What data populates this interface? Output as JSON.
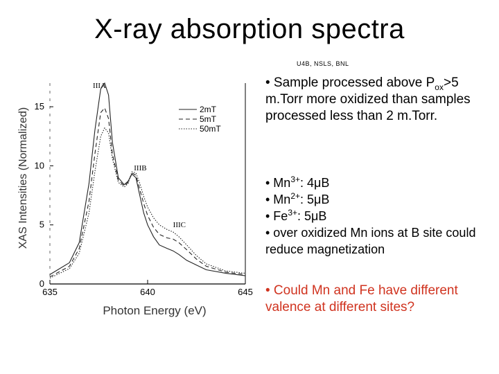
{
  "slide": {
    "title": "X-ray absorption spectra",
    "source": "U4B, NSLS, BNL"
  },
  "bullets": {
    "b1": {
      "lead": "• Sample processed above P",
      "sub": "ox",
      "tail": ">5 m.Torr more oxidized than samples processed less than 2 m.Torr."
    },
    "b2": [
      {
        "pre": "• Mn",
        "sup": "3+",
        "post": ": 4μB"
      },
      {
        "pre": "• Mn",
        "sup": "2+",
        "post": ": 5μB"
      },
      {
        "pre": "• Fe",
        "sup": "3+",
        "post": ": 5μB"
      },
      {
        "pre": "• over oxidized Mn ions at B site could reduce magnetization",
        "sup": "",
        "post": ""
      }
    ],
    "b3": "• Could Mn and Fe have different valence at different sites?",
    "b3_color": "#d0331f"
  },
  "chart_data": {
    "type": "line",
    "xlabel": "Photon Energy (eV)",
    "ylabel": "XAS Intensities (Normalized)",
    "xlim": [
      635,
      645
    ],
    "ylim": [
      0,
      17
    ],
    "xticks": [
      "635",
      "640",
      "645"
    ],
    "yticks": [
      "0",
      "5",
      "10",
      "15"
    ],
    "annotations": [
      {
        "text": "IIIA",
        "x": 637.2,
        "y": 16.6
      },
      {
        "text": "IIIB",
        "x": 639.3,
        "y": 9.6
      },
      {
        "text": "IIIC",
        "x": 641.3,
        "y": 4.8
      }
    ],
    "series": [
      {
        "name": "2mT",
        "style": "solid",
        "x": [
          635.0,
          636.0,
          636.5,
          637.0,
          637.3,
          637.6,
          637.8,
          638.0,
          638.2,
          638.5,
          638.8,
          639.0,
          639.2,
          639.4,
          639.6,
          639.8,
          640.0,
          640.3,
          640.6,
          641.0,
          641.3,
          641.6,
          642.0,
          642.5,
          643.0,
          644.0,
          645.0
        ],
        "y": [
          0.8,
          1.8,
          3.5,
          8.5,
          13.0,
          16.5,
          17.0,
          16.0,
          12.0,
          9.0,
          8.4,
          8.7,
          9.3,
          9.0,
          7.5,
          6.0,
          5.0,
          4.0,
          3.3,
          3.0,
          2.8,
          2.5,
          2.0,
          1.6,
          1.2,
          0.9,
          0.7
        ]
      },
      {
        "name": "5mT",
        "style": "dashed",
        "x": [
          635.0,
          636.0,
          636.5,
          637.0,
          637.3,
          637.6,
          637.8,
          638.0,
          638.2,
          638.5,
          638.8,
          639.0,
          639.2,
          639.4,
          639.6,
          639.8,
          640.0,
          640.3,
          640.6,
          641.0,
          641.3,
          641.6,
          642.0,
          642.5,
          643.0,
          644.0,
          645.0
        ],
        "y": [
          0.6,
          1.5,
          3.0,
          7.0,
          11.0,
          14.5,
          14.9,
          14.0,
          11.0,
          8.8,
          8.3,
          8.6,
          9.4,
          9.2,
          8.0,
          6.8,
          5.8,
          4.8,
          4.2,
          3.9,
          3.8,
          3.5,
          2.9,
          2.1,
          1.5,
          1.0,
          0.8
        ]
      },
      {
        "name": "50mT",
        "style": "dotted",
        "x": [
          635.0,
          636.0,
          636.5,
          637.0,
          637.3,
          637.6,
          637.8,
          638.0,
          638.2,
          638.5,
          638.8,
          639.0,
          639.2,
          639.4,
          639.6,
          639.8,
          640.0,
          640.3,
          640.6,
          641.0,
          641.3,
          641.6,
          642.0,
          642.5,
          643.0,
          644.0,
          645.0
        ],
        "y": [
          0.5,
          1.3,
          2.6,
          6.0,
          9.5,
          12.5,
          13.2,
          12.8,
          10.6,
          8.6,
          8.2,
          8.5,
          9.5,
          9.4,
          8.5,
          7.4,
          6.5,
          5.6,
          5.0,
          4.6,
          4.4,
          4.0,
          3.3,
          2.4,
          1.7,
          1.1,
          0.9
        ]
      }
    ],
    "legend_position": "top-right",
    "grid": false
  }
}
